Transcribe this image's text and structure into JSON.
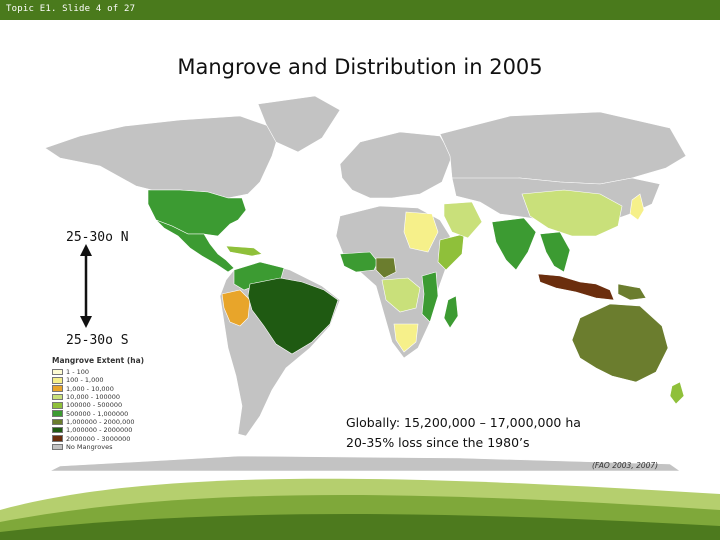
{
  "header": {
    "slide_info": "Topic E1. Slide 4 of 27"
  },
  "title": "Mangrove and Distribution in 2005",
  "latitude": {
    "north": "25-30o N",
    "south": "25-30o S"
  },
  "legend": {
    "title": "Mangrove Extent (ha)",
    "items": [
      {
        "label": "1 - 100",
        "color": "#fdfbd2"
      },
      {
        "label": "100 - 1,000",
        "color": "#f6f08a"
      },
      {
        "label": "1,000 - 10,000",
        "color": "#e8a52a"
      },
      {
        "label": "10,000 - 100000",
        "color": "#c9e07a"
      },
      {
        "label": "100000 - 500000",
        "color": "#8fc03a"
      },
      {
        "label": "500000 - 1,000000",
        "color": "#3c9b32"
      },
      {
        "label": "1,000000 - 2000,000",
        "color": "#6b7d2e"
      },
      {
        "label": "1,000000 - 2000000",
        "color": "#1f5a12"
      },
      {
        "label": "2000000 - 3000000",
        "color": "#6b2e0e"
      },
      {
        "label": "No Mangroves",
        "color": "#c3c3c3"
      }
    ]
  },
  "stats": {
    "line1": "Globally: 15,200,000 – 17,000,000 ha",
    "line2": "20-35% loss since the 1980’s"
  },
  "source": "(FAO 2003, 2007)",
  "colors": {
    "header_bar": "#4a7a1c",
    "ocean": "#ffffff",
    "no_mangrove": "#c3c3c3"
  }
}
